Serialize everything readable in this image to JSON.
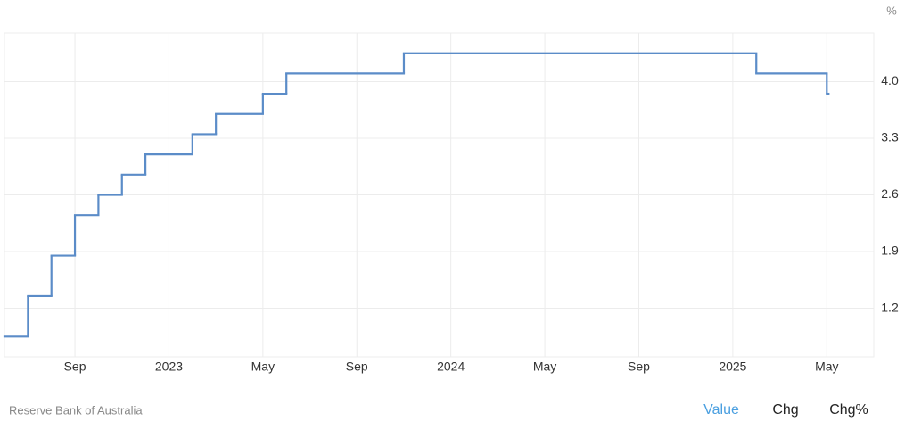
{
  "chart_data": {
    "type": "step-line",
    "unit": "%",
    "x": [
      "2022-06",
      "2022-07",
      "2022-08",
      "2022-09",
      "2022-10",
      "2022-11",
      "2022-12",
      "2023-02",
      "2023-03",
      "2023-05",
      "2023-06",
      "2023-11",
      "2025-02",
      "2025-05"
    ],
    "series": [
      {
        "name": "Value",
        "color": "#5b8cc8",
        "values": [
          0.85,
          1.35,
          1.85,
          2.35,
          2.6,
          2.85,
          3.1,
          3.35,
          3.6,
          3.85,
          4.1,
          4.35,
          4.1,
          3.85
        ]
      }
    ],
    "xlim": [
      "2022-06",
      "2025-07"
    ],
    "xticks": [
      {
        "value": "2022-09",
        "label": "Sep"
      },
      {
        "value": "2023-01",
        "label": "2023"
      },
      {
        "value": "2023-05",
        "label": "May"
      },
      {
        "value": "2023-09",
        "label": "Sep"
      },
      {
        "value": "2024-01",
        "label": "2024"
      },
      {
        "value": "2024-05",
        "label": "May"
      },
      {
        "value": "2024-09",
        "label": "Sep"
      },
      {
        "value": "2025-01",
        "label": "2025"
      },
      {
        "value": "2025-05",
        "label": "May"
      }
    ],
    "ylim": [
      0.6,
      4.6
    ],
    "yticks": [
      1.2,
      1.9,
      2.6,
      3.3,
      {
        "value": 4.0,
        "label": "4.0"
      }
    ],
    "grid": true
  },
  "footer": {
    "source": "Reserve Bank of Australia",
    "tabs": [
      "Value",
      "Chg",
      "Chg%"
    ],
    "active_tab": "Value"
  }
}
